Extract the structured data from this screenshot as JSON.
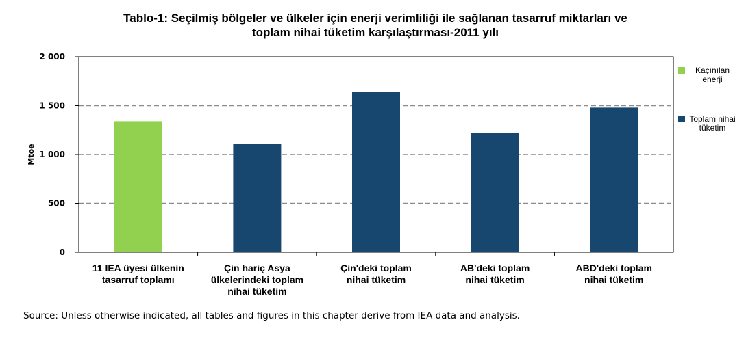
{
  "chart_data": {
    "type": "bar",
    "title_lines": [
      "Tablo-1: Seçilmiş bölgeler ve ülkeler için enerji verimliliği ile sağlanan tasarruf miktarları ve",
      "toplam nihai tüketim karşılaştırması-2011 yılı"
    ],
    "ylabel": "Mtoe",
    "ylim": [
      0,
      2000
    ],
    "yticks": [
      0,
      500,
      1000,
      1500,
      2000
    ],
    "ytick_labels": [
      "0",
      "500",
      "1 000",
      "1 500",
      "2 000"
    ],
    "grid": "horizontal-dashed",
    "legend_position": "right",
    "categories": [
      [
        "11 IEA üyesi ülkenin",
        "tasarruf toplamı"
      ],
      [
        "Çin hariç Asya",
        "ülkelerindeki toplam",
        "nihai tüketim"
      ],
      [
        "Çin'deki toplam",
        "nihai tüketim"
      ],
      [
        "AB'deki toplam",
        "nihai tüketim"
      ],
      [
        "ABD'deki toplam",
        "nihai tüketim"
      ]
    ],
    "values": [
      1340,
      1110,
      1640,
      1220,
      1480
    ],
    "bar_series": [
      0,
      1,
      1,
      1,
      1
    ],
    "series": [
      {
        "name_lines": [
          "Kaçınılan",
          "enerji"
        ],
        "color": "#92d050"
      },
      {
        "name_lines": [
          "Toplam nihai",
          "tüketim"
        ],
        "color": "#17476e"
      }
    ]
  },
  "source": "Source: Unless otherwise indicated, all tables and figures in this chapter derive from IEA data and analysis."
}
